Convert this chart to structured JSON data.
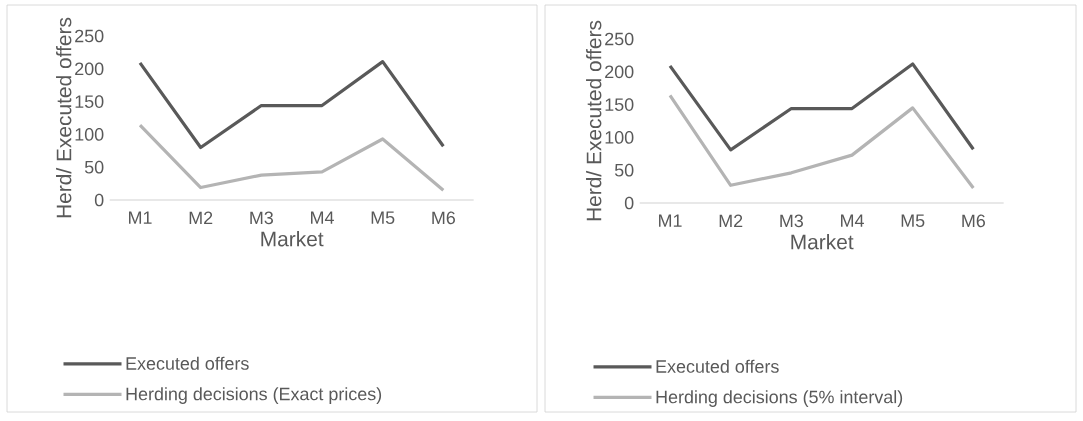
{
  "chart_data": [
    {
      "type": "line",
      "categories": [
        "M1",
        "M2",
        "M3",
        "M4",
        "M5",
        "M6"
      ],
      "xlabel": "Market",
      "ylabel": "Herd/ Executed offers",
      "ylim": [
        0,
        250
      ],
      "yticks": [
        0,
        50,
        100,
        150,
        200,
        250
      ],
      "legend": "bottom",
      "marker": "none",
      "series": [
        {
          "name": "Executed offers",
          "color": "#595959",
          "values": [
            209,
            80,
            144,
            144,
            211,
            82
          ]
        },
        {
          "name": "Herding decisions (Exact prices)",
          "color": "#b4b4b4",
          "values": [
            114,
            19,
            38,
            43,
            93,
            15
          ]
        }
      ]
    },
    {
      "type": "line",
      "categories": [
        "M1",
        "M2",
        "M3",
        "M4",
        "M5",
        "M6"
      ],
      "xlabel": "Market",
      "ylabel": "Herd/ Executed offers",
      "ylim": [
        0,
        250
      ],
      "yticks": [
        0,
        50,
        100,
        150,
        200,
        250
      ],
      "legend": "bottom",
      "marker": "none",
      "series": [
        {
          "name": "Executed offers",
          "color": "#595959",
          "values": [
            209,
            81,
            144,
            144,
            212,
            82
          ]
        },
        {
          "name": "Herding decisions (5% interval)",
          "color": "#b4b4b4",
          "values": [
            164,
            27,
            46,
            73,
            145,
            23
          ]
        }
      ]
    }
  ]
}
